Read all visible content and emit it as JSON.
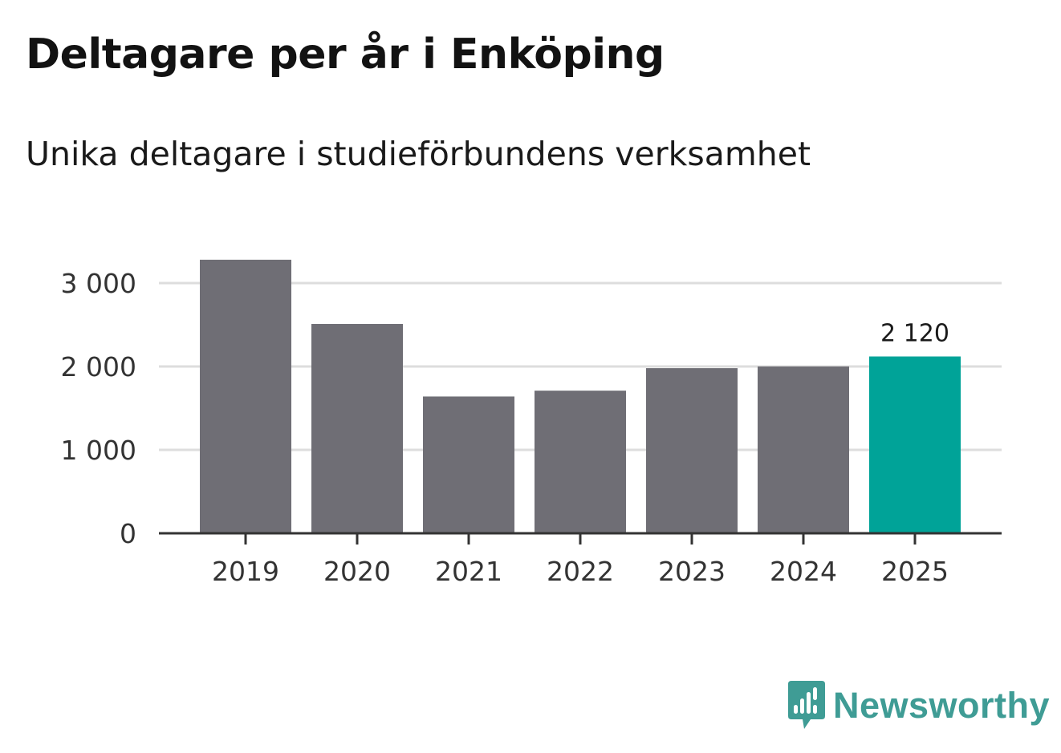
{
  "colors": {
    "bar": "#6f6e75",
    "highlight": "#00a398",
    "grid": "#dddddd",
    "axis": "#333333",
    "brand": "#3f9c95"
  },
  "brand": {
    "name": "Newsworthy",
    "icon": "newsworthy-logo-icon"
  },
  "chart_data": {
    "type": "bar",
    "title": "Deltagare per år i Enköping",
    "subtitle": "Unika deltagare i studieförbundens verksamhet",
    "xlabel": "",
    "ylabel": "",
    "categories": [
      "2019",
      "2020",
      "2021",
      "2022",
      "2023",
      "2024",
      "2025"
    ],
    "values": [
      3280,
      2510,
      1640,
      1710,
      1980,
      2000,
      2120
    ],
    "highlight_index": 6,
    "data_labels": [
      {
        "index": 6,
        "text": "2 120"
      }
    ],
    "ylim": [
      0,
      3000
    ],
    "yticks": [
      0,
      1000,
      2000,
      3000
    ],
    "ytick_labels": [
      "0",
      "1 000",
      "2 000",
      "3 000"
    ],
    "grid": true,
    "legend": "none"
  }
}
